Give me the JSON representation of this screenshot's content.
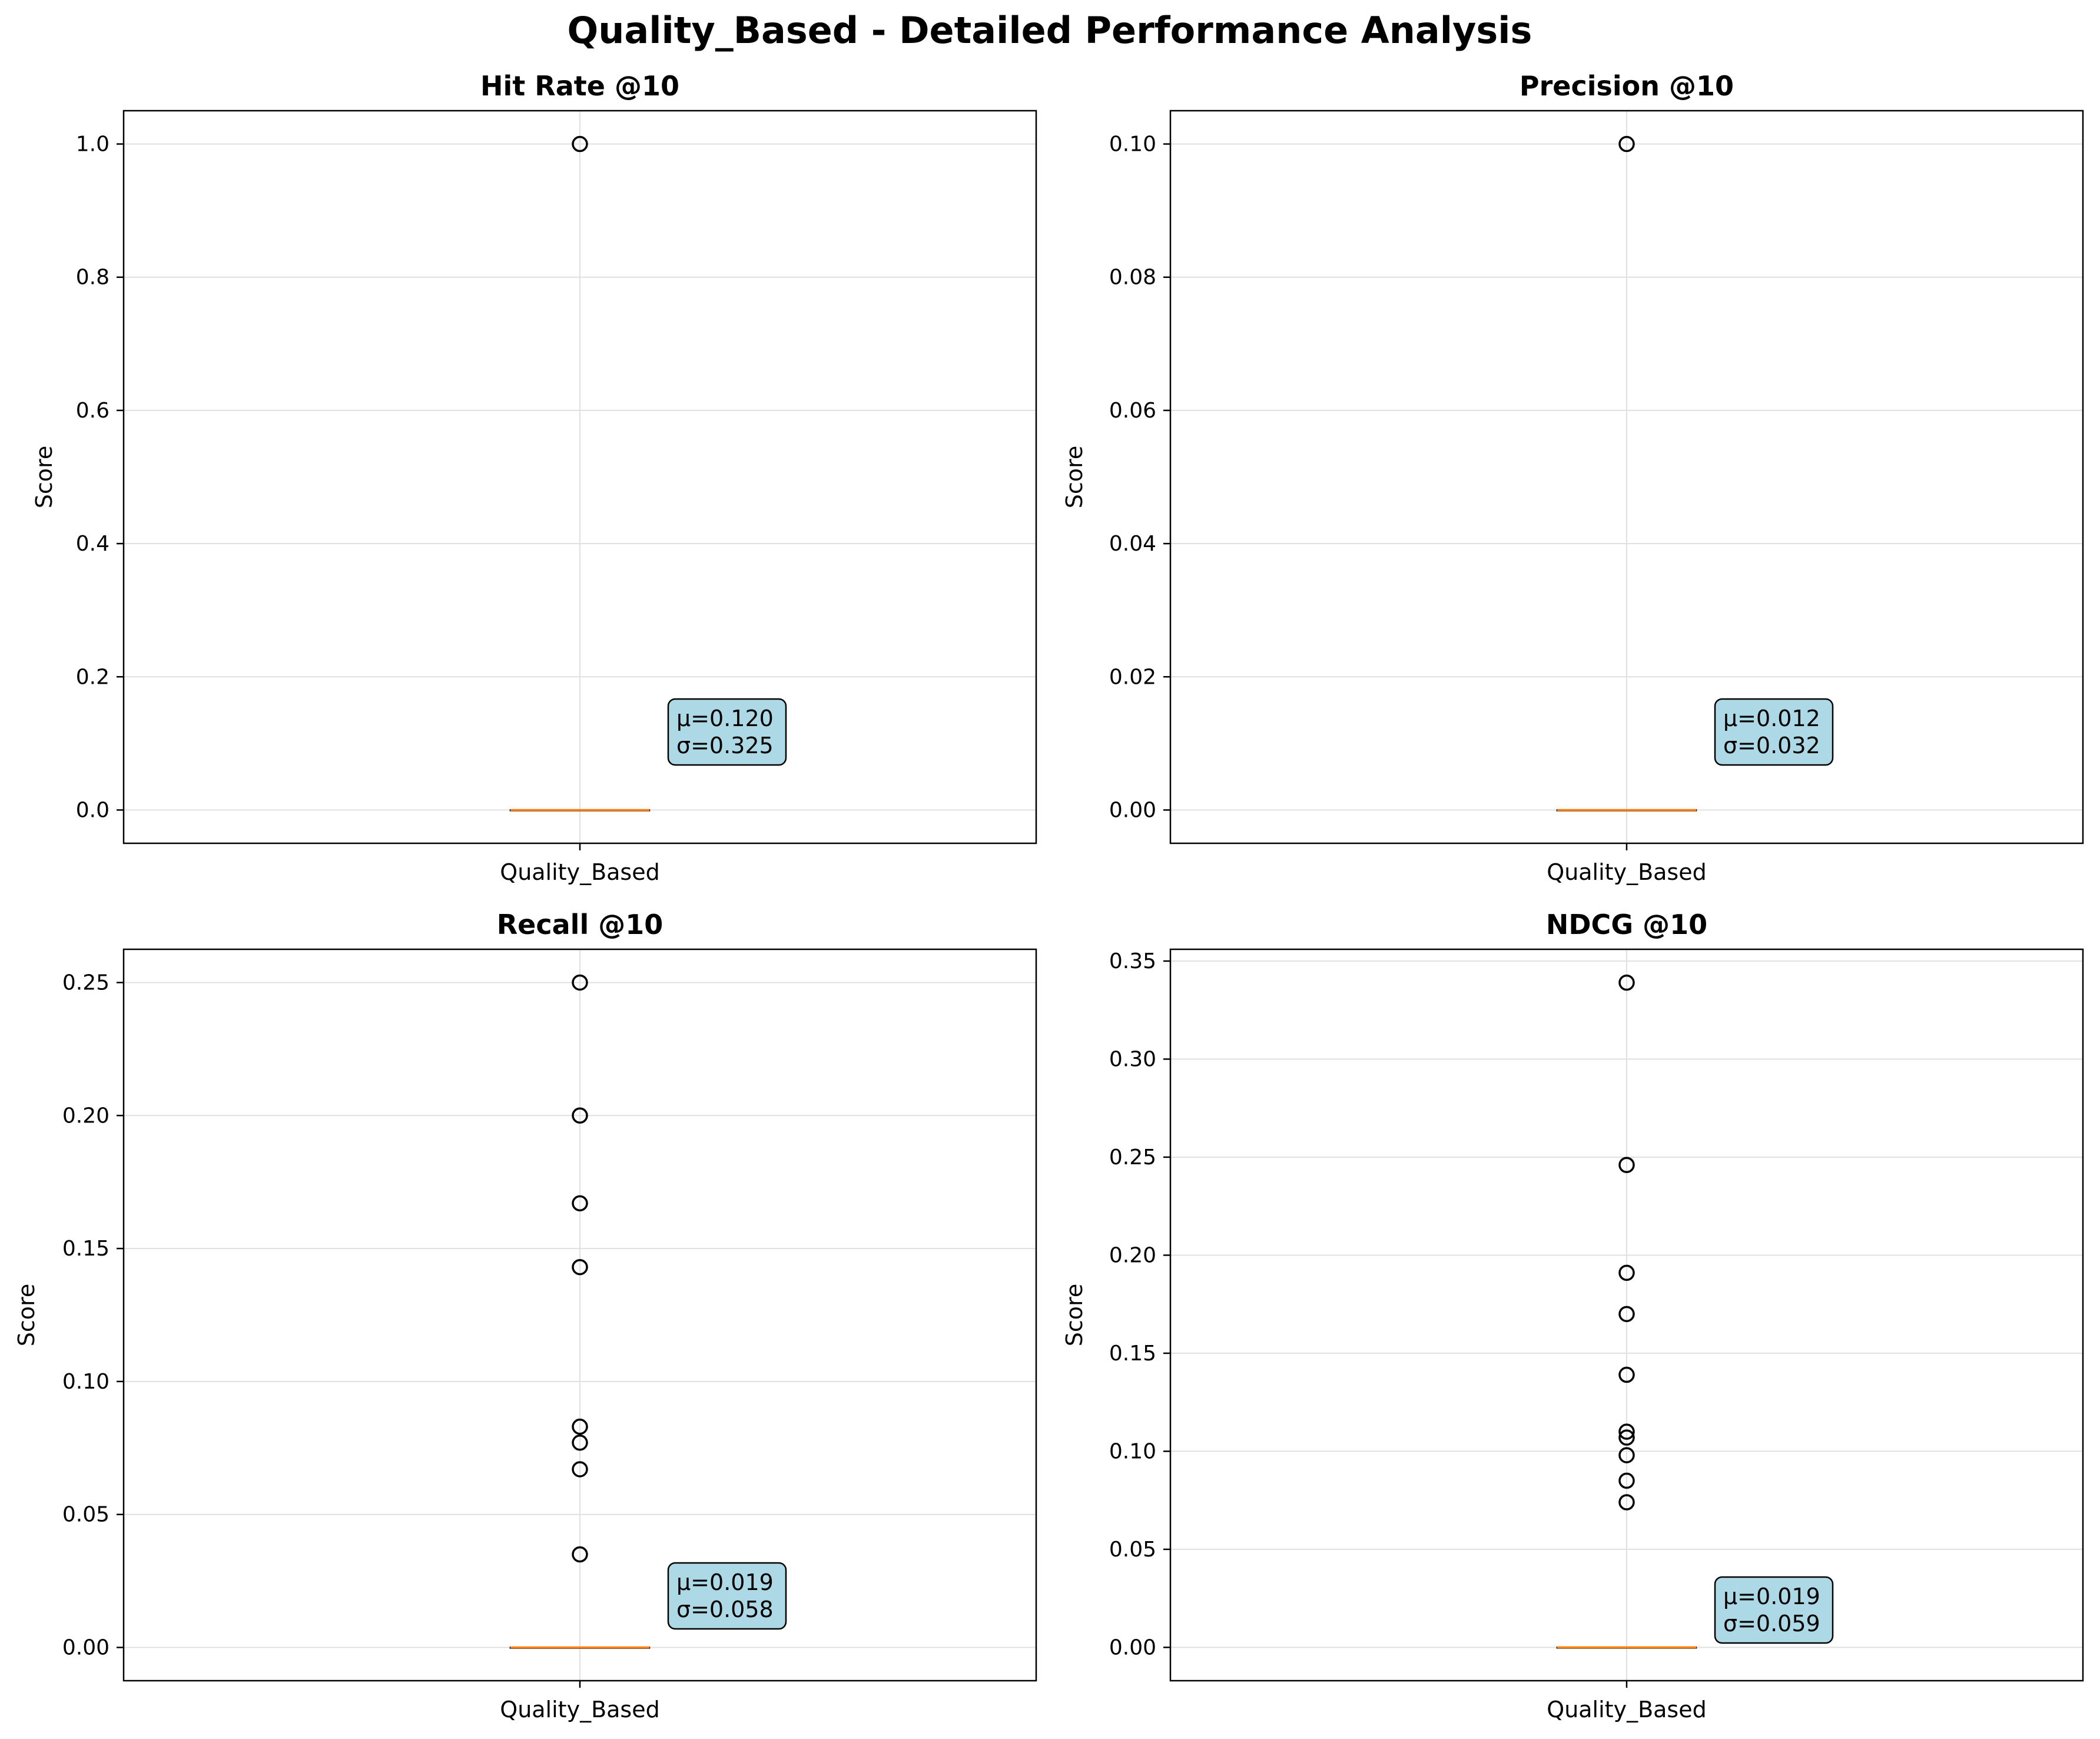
{
  "figure": {
    "title": "Quality_Based - Detailed Performance Analysis",
    "colors": {
      "box": "#000000",
      "median": "#ff7f0e",
      "grid": "#e0e0e0",
      "stats_box_fill": "#add8e6",
      "stats_box_edge": "#000000"
    }
  },
  "chart_data": [
    {
      "type": "box",
      "title": "Hit Rate @10",
      "ylabel": "Score",
      "categories": [
        "Quality_Based"
      ],
      "ylim": [
        -0.05,
        1.05
      ],
      "yticks": [
        0.0,
        0.2,
        0.4,
        0.6,
        0.8,
        1.0
      ],
      "ytick_labels": [
        "0.0",
        "0.2",
        "0.4",
        "0.6",
        "0.8",
        "1.0"
      ],
      "box": {
        "q1": 0.0,
        "median": 0.0,
        "q3": 0.0,
        "whisker_low": 0.0,
        "whisker_high": 0.0
      },
      "outliers": [
        1.0
      ],
      "stats": {
        "mean_label": "μ=0.120",
        "std_label": "σ=0.325"
      },
      "grid": true
    },
    {
      "type": "box",
      "title": "Precision @10",
      "ylabel": "Score",
      "categories": [
        "Quality_Based"
      ],
      "ylim": [
        -0.005,
        0.105
      ],
      "yticks": [
        0.0,
        0.02,
        0.04,
        0.06,
        0.08,
        0.1
      ],
      "ytick_labels": [
        "0.00",
        "0.02",
        "0.04",
        "0.06",
        "0.08",
        "0.10"
      ],
      "box": {
        "q1": 0.0,
        "median": 0.0,
        "q3": 0.0,
        "whisker_low": 0.0,
        "whisker_high": 0.0
      },
      "outliers": [
        0.1
      ],
      "stats": {
        "mean_label": "μ=0.012",
        "std_label": "σ=0.032"
      },
      "grid": true
    },
    {
      "type": "box",
      "title": "Recall @10",
      "ylabel": "Score",
      "categories": [
        "Quality_Based"
      ],
      "ylim": [
        -0.0125,
        0.2625
      ],
      "yticks": [
        0.0,
        0.05,
        0.1,
        0.15,
        0.2,
        0.25
      ],
      "ytick_labels": [
        "0.00",
        "0.05",
        "0.10",
        "0.15",
        "0.20",
        "0.25"
      ],
      "box": {
        "q1": 0.0,
        "median": 0.0,
        "q3": 0.0,
        "whisker_low": 0.0,
        "whisker_high": 0.0
      },
      "outliers": [
        0.25,
        0.2,
        0.167,
        0.143,
        0.083,
        0.077,
        0.067,
        0.035
      ],
      "stats": {
        "mean_label": "μ=0.019",
        "std_label": "σ=0.058"
      },
      "grid": true
    },
    {
      "type": "box",
      "title": "NDCG @10",
      "ylabel": "Score",
      "categories": [
        "Quality_Based"
      ],
      "ylim": [
        -0.017,
        0.356
      ],
      "yticks": [
        0.0,
        0.05,
        0.1,
        0.15,
        0.2,
        0.25,
        0.3,
        0.35
      ],
      "ytick_labels": [
        "0.00",
        "0.05",
        "0.10",
        "0.15",
        "0.20",
        "0.25",
        "0.30",
        "0.35"
      ],
      "box": {
        "q1": 0.0,
        "median": 0.0,
        "q3": 0.0,
        "whisker_low": 0.0,
        "whisker_high": 0.0
      },
      "outliers": [
        0.339,
        0.246,
        0.191,
        0.17,
        0.139,
        0.11,
        0.107,
        0.098,
        0.085,
        0.074
      ],
      "stats": {
        "mean_label": "μ=0.019",
        "std_label": "σ=0.059"
      },
      "grid": true
    }
  ]
}
